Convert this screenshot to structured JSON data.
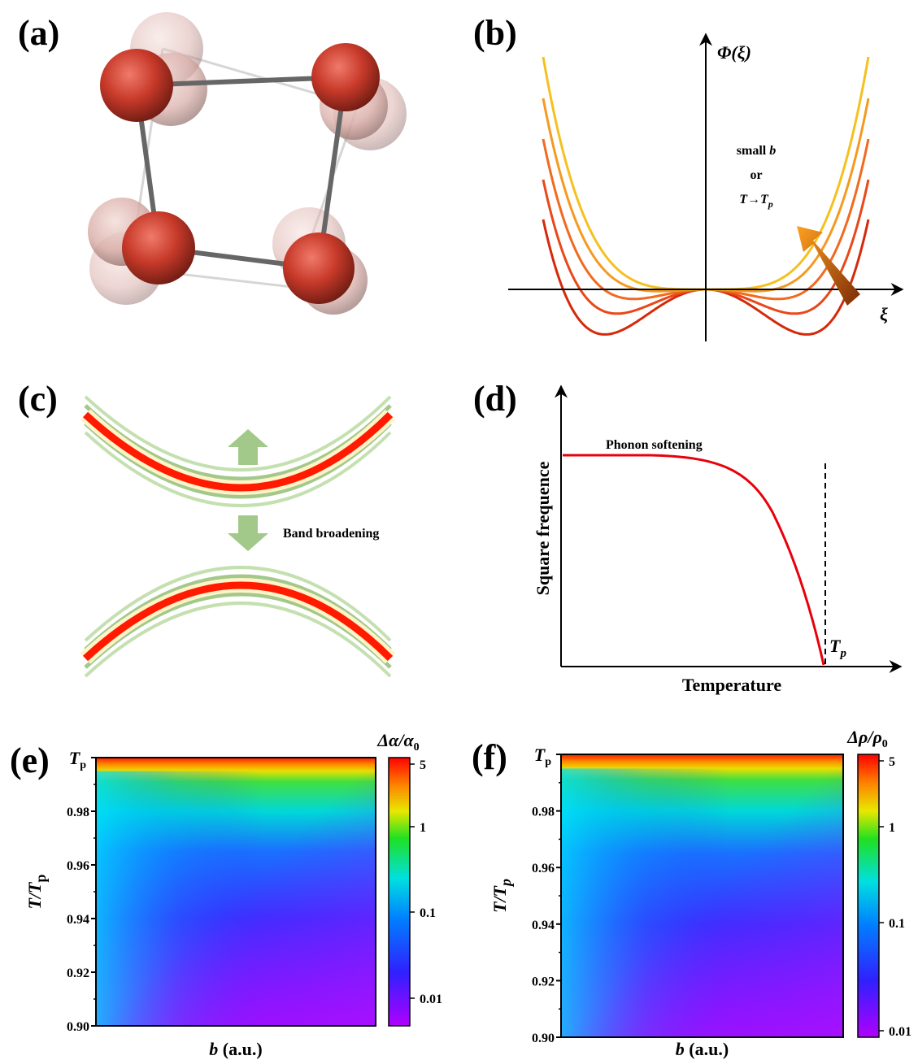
{
  "a": {
    "label": "(a)"
  },
  "b": {
    "label": "(b)",
    "y_axis": "Φ(ξ)",
    "x_axis": "ξ",
    "note": {
      "line1": [
        "small ",
        "b"
      ],
      "line2": "or",
      "line3": [
        "T→T",
        "p"
      ]
    }
  },
  "c": {
    "label": "(c)",
    "text": "Band broadening"
  },
  "d": {
    "label": "(d)",
    "title": "Phonon softening",
    "y_label": "Square frequence",
    "x_label": "Temperature",
    "marker": [
      "T",
      "p"
    ]
  },
  "e": {
    "label": "(e)",
    "colorbar_title": [
      "Δα/α",
      "0"
    ],
    "y_label": [
      "T/T",
      "p"
    ],
    "x_label": [
      "b",
      " (a.u.)"
    ],
    "top_tick": [
      "T",
      "p"
    ],
    "yticks": [
      "0.98",
      "0.96",
      "0.94",
      "0.92",
      "0.90"
    ],
    "colorbar_ticks": [
      "5",
      "1",
      "0.1",
      "0.01"
    ]
  },
  "f": {
    "label": "(f)",
    "colorbar_title": [
      "Δρ/ρ",
      "0"
    ],
    "y_label": [
      "T/T",
      "p"
    ],
    "x_label": [
      "b",
      " (a.u.)"
    ],
    "top_tick": [
      "T",
      "p"
    ],
    "yticks": [
      "0.98",
      "0.96",
      "0.94",
      "0.92",
      "0.90"
    ],
    "colorbar_ticks": [
      "5",
      "1",
      "0.1",
      "0.01"
    ]
  }
}
